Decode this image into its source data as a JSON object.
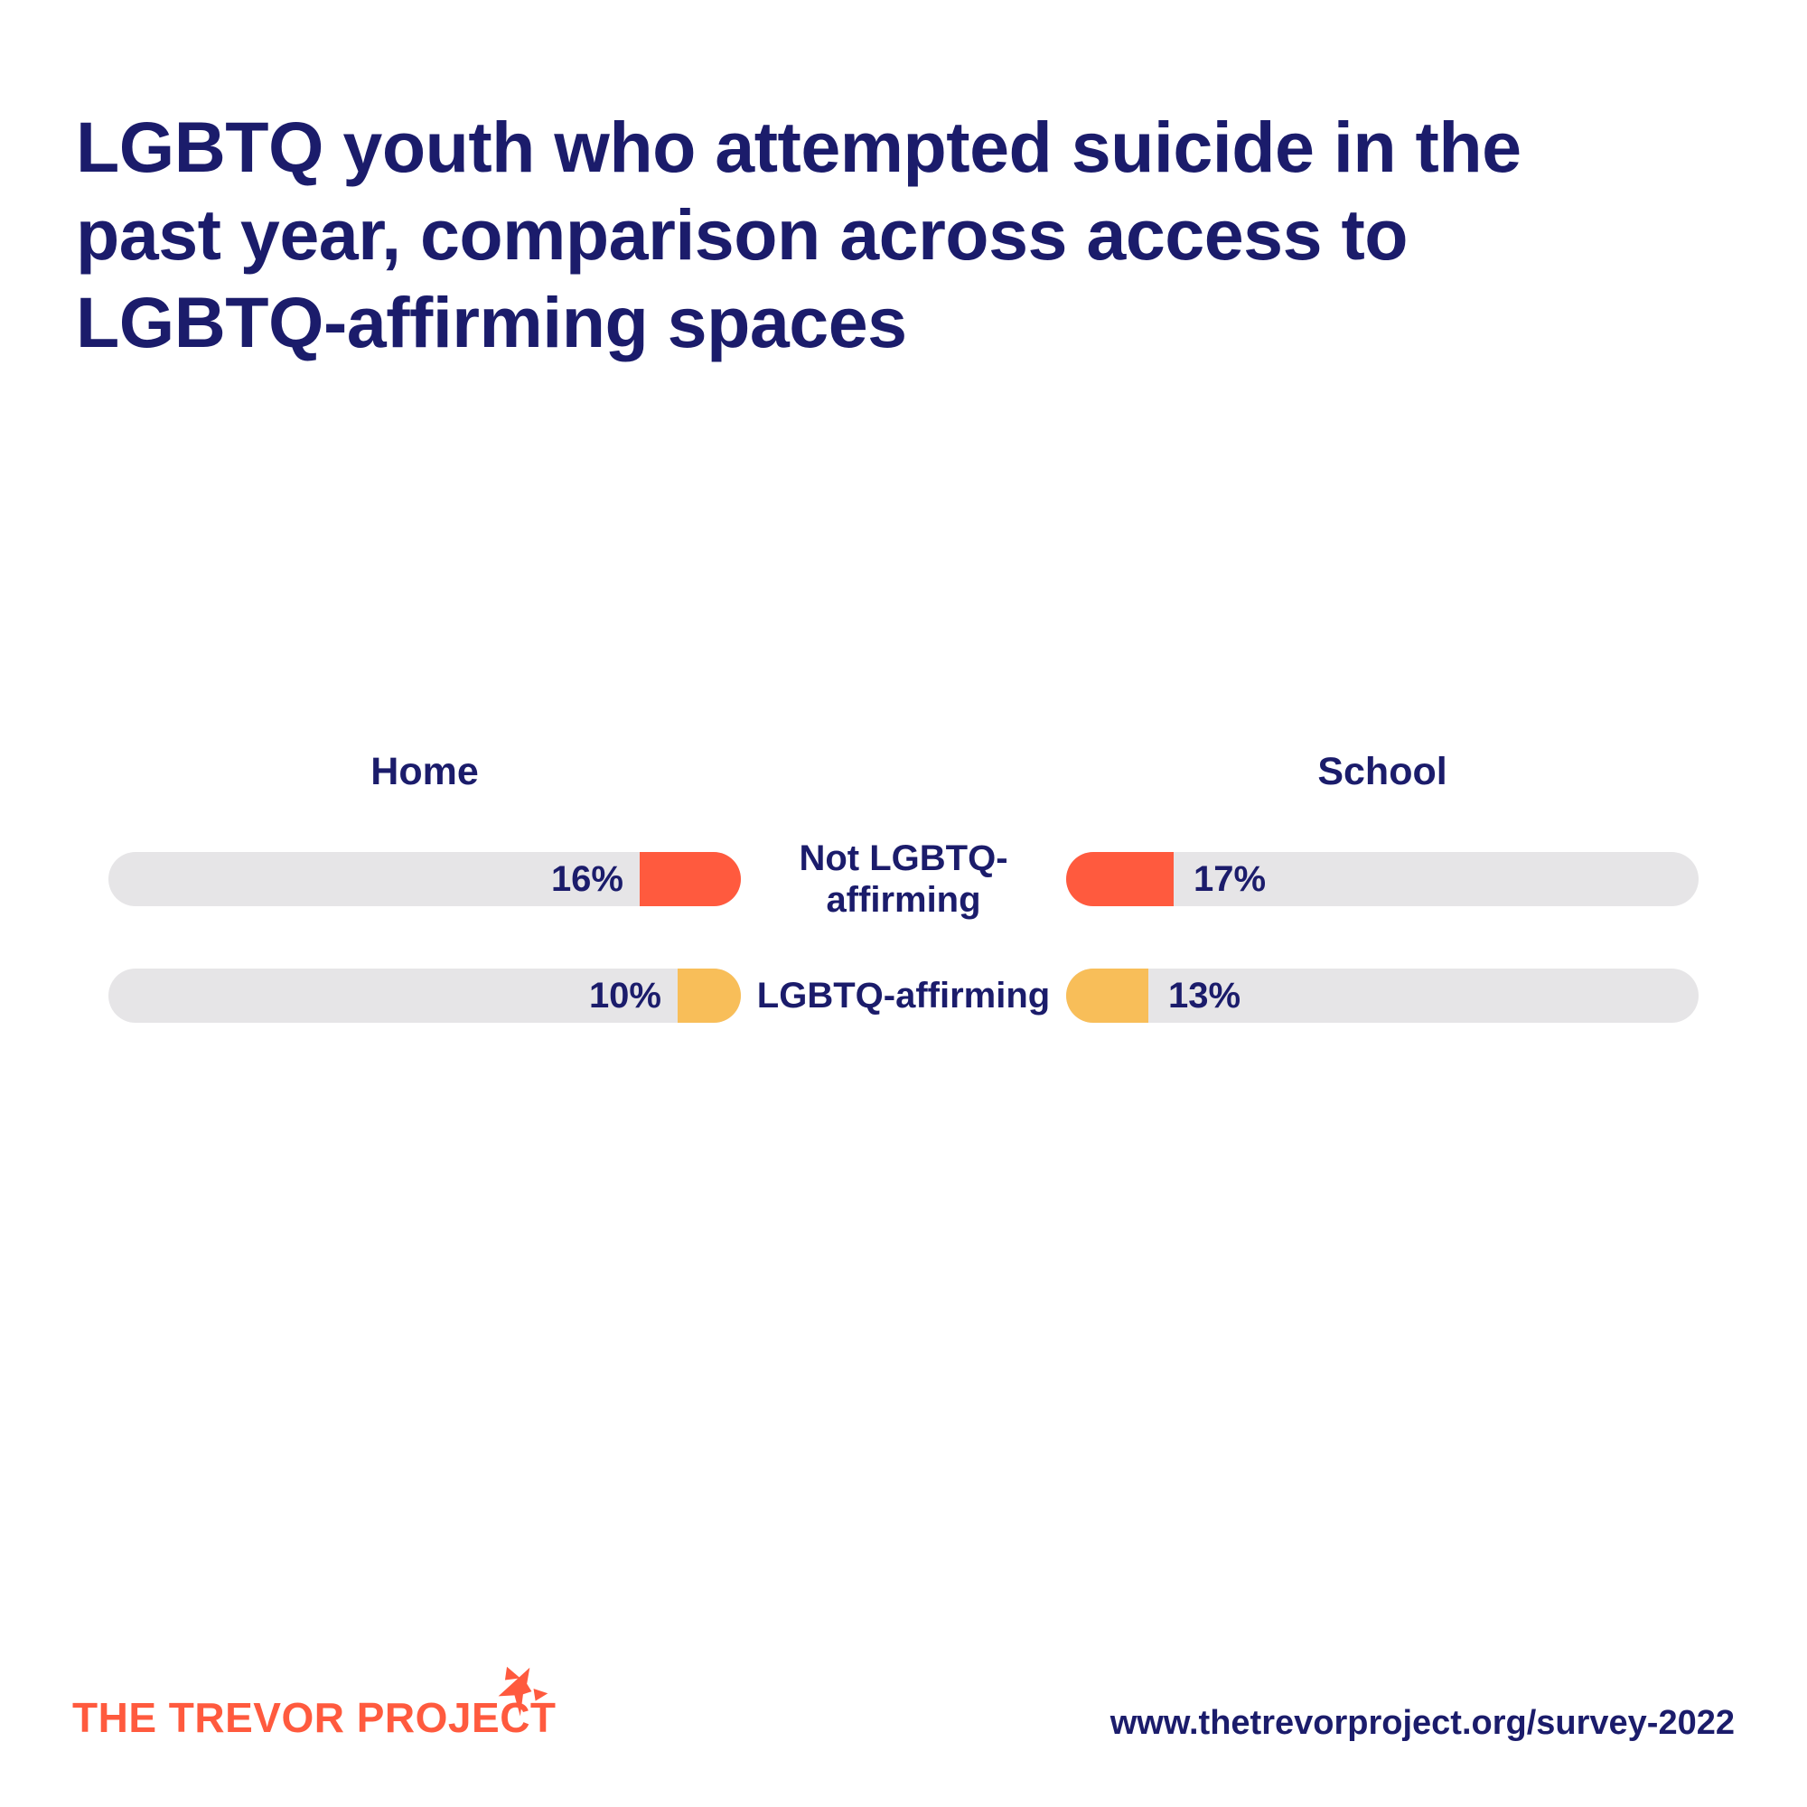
{
  "colors": {
    "navy": "#1b1c6b",
    "orange": "#ff5a3e",
    "yellow": "#f8be59",
    "track_gray": "#e6e5e7",
    "background": "#ffffff"
  },
  "title_lines": [
    "LGBTQ youth who attempted suicide in the",
    "past year, comparison across access to",
    "LGBTQ-affirming spaces"
  ],
  "chart_data": {
    "type": "bar",
    "title": "LGBTQ youth who attempted suicide in the past year, comparison across access to LGBTQ-affirming spaces",
    "unit": "%",
    "xlim": [
      0,
      100
    ],
    "grid": false,
    "legend": false,
    "groups": [
      "Home",
      "School"
    ],
    "categories": [
      "Not LGBTQ-affirming",
      "LGBTQ-affirming"
    ],
    "series": [
      {
        "name": "Home",
        "values": [
          16,
          10
        ]
      },
      {
        "name": "School",
        "values": [
          17,
          13
        ]
      }
    ],
    "rows": [
      {
        "label_lines": [
          "Not LGBTQ-",
          "affirming"
        ],
        "color": "#ff5a3e",
        "home": {
          "value": 16,
          "label": "16%"
        },
        "school": {
          "value": 17,
          "label": "17%"
        }
      },
      {
        "label_lines": [
          "LGBTQ-affirming",
          ""
        ],
        "color": "#f8be59",
        "home": {
          "value": 10,
          "label": "10%"
        },
        "school": {
          "value": 13,
          "label": "13%"
        }
      }
    ]
  },
  "footer": {
    "logo_text": "THE TREVOR PROJECT",
    "url": "www.thetrevorproject.org/survey-2022"
  }
}
